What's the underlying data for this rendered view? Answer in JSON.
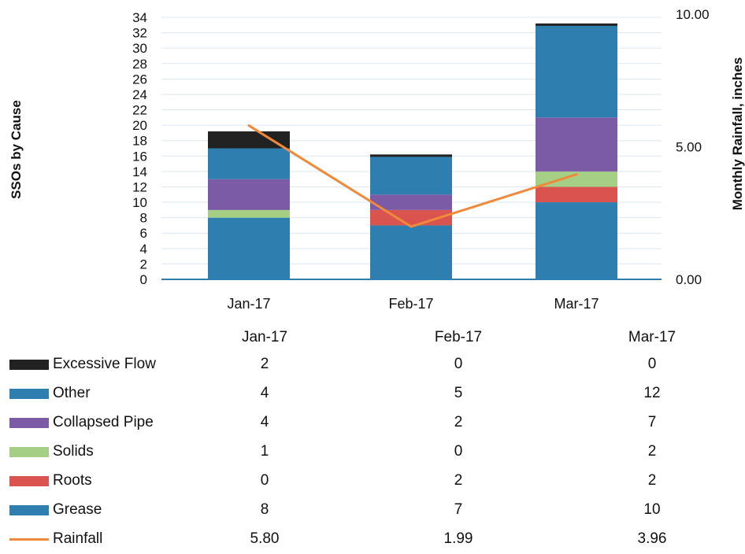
{
  "chart_data": {
    "type": "bar",
    "stacked": true,
    "categories": [
      "Jan-17",
      "Feb-17",
      "Mar-17"
    ],
    "ylabel": "SSOs by Cause",
    "y2label": "Monthly Rainfall, inches",
    "ylim": [
      0,
      34
    ],
    "y2lim": [
      0,
      10
    ],
    "yticks": [
      "0",
      "2",
      "4",
      "6",
      "8",
      "10",
      "12",
      "14",
      "16",
      "18",
      "20",
      "22",
      "24",
      "26",
      "28",
      "30",
      "32",
      "34"
    ],
    "y2ticks": [
      "0.00",
      "5.00",
      "10.00"
    ],
    "grid": true,
    "series": [
      {
        "name": "Grease",
        "values": [
          8,
          7,
          10
        ],
        "color": "#2e7fb0"
      },
      {
        "name": "Roots",
        "values": [
          0,
          2,
          2
        ],
        "color": "#d9534f"
      },
      {
        "name": "Solids",
        "values": [
          1,
          0,
          2
        ],
        "color": "#a6cf86"
      },
      {
        "name": "Collapsed Pipe",
        "values": [
          4,
          2,
          7
        ],
        "color": "#7b5aa6"
      },
      {
        "name": "Other",
        "values": [
          4,
          5,
          12
        ],
        "color": "#2e7fb0"
      },
      {
        "name": "Excessive Flow",
        "values": [
          2,
          0,
          0
        ],
        "color": "#222222"
      }
    ],
    "line_series": {
      "name": "Rainfall",
      "values": [
        5.8,
        1.99,
        3.96
      ],
      "color": "#f08a3a",
      "axis": "y2"
    }
  },
  "table": {
    "headers": [
      "Jan-17",
      "Feb-17",
      "Mar-17"
    ],
    "rows": [
      {
        "label": "Excessive Flow",
        "values": [
          "2",
          "0",
          "0"
        ],
        "color": "#222222",
        "kind": "bar"
      },
      {
        "label": "Other",
        "values": [
          "4",
          "5",
          "12"
        ],
        "color": "#2e7fb0",
        "kind": "bar"
      },
      {
        "label": "Collapsed Pipe",
        "values": [
          "4",
          "2",
          "7"
        ],
        "color": "#7b5aa6",
        "kind": "bar"
      },
      {
        "label": "Solids",
        "values": [
          "1",
          "0",
          "2"
        ],
        "color": "#a6cf86",
        "kind": "bar"
      },
      {
        "label": "Roots",
        "values": [
          "0",
          "2",
          "2"
        ],
        "color": "#d9534f",
        "kind": "bar"
      },
      {
        "label": "Grease",
        "values": [
          "8",
          "7",
          "10"
        ],
        "color": "#2e7fb0",
        "kind": "bar"
      },
      {
        "label": "Rainfall",
        "values": [
          "5.80",
          "1.99",
          "3.96"
        ],
        "color": "#f08a3a",
        "kind": "line"
      }
    ]
  }
}
